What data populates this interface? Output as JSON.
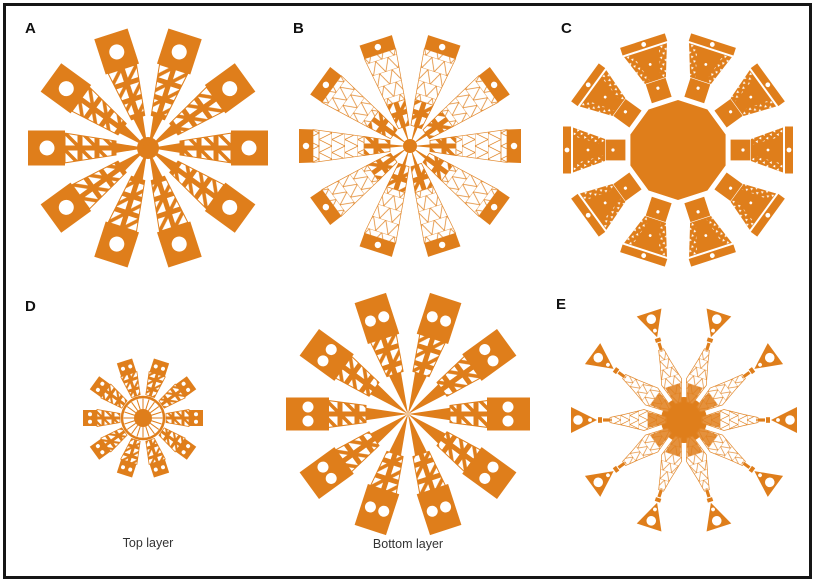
{
  "figure": {
    "background": "#ffffff",
    "frame_color": "#161616",
    "accent_color": "#DF7E1B",
    "mesh_color": "#E2892E",
    "panels": [
      {
        "id": "A",
        "label": "A",
        "type": "truss-star",
        "arms": 10,
        "pad_shape": "rectangle",
        "pad_holes": 1,
        "caption": ""
      },
      {
        "id": "B",
        "label": "B",
        "type": "mesh-star",
        "arms": 10,
        "pad_shape": "cap",
        "pad_holes": 1,
        "caption": ""
      },
      {
        "id": "C",
        "label": "C",
        "type": "decagon-star",
        "arms": 10,
        "pad_shape": "bar",
        "pad_holes": 1,
        "caption": ""
      },
      {
        "id": "D",
        "label": "D",
        "type": "small-truss-star",
        "arms": 10,
        "pad_shape": "rectangle",
        "pad_holes": 2,
        "caption": "Top layer"
      },
      {
        "id": "bottom",
        "label": "",
        "type": "large-truss-star",
        "arms": 10,
        "pad_shape": "rectangle",
        "pad_holes": 2,
        "caption": "Bottom layer"
      },
      {
        "id": "E",
        "label": "E",
        "type": "spindle-star",
        "arms": 10,
        "pad_shape": "triangle",
        "pad_holes": 2,
        "caption": ""
      }
    ]
  }
}
